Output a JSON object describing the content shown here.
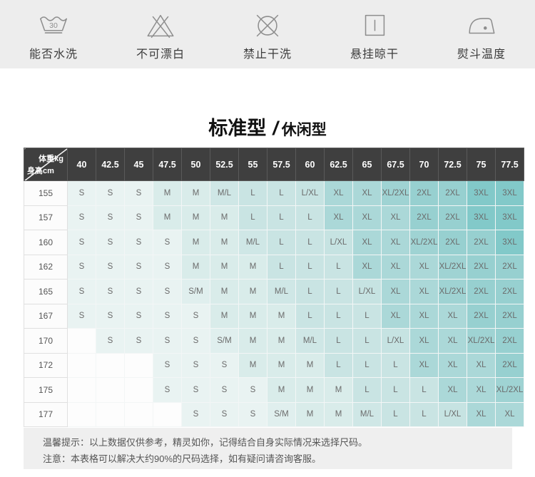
{
  "care_icons": [
    {
      "icon": "wash-30-icon",
      "label": "能否水洗"
    },
    {
      "icon": "no-bleach-icon",
      "label": "不可漂白"
    },
    {
      "icon": "no-dry-clean-icon",
      "label": "禁止干洗"
    },
    {
      "icon": "hang-dry-icon",
      "label": "悬挂晾干"
    },
    {
      "icon": "iron-temp-icon",
      "label": "熨斗温度"
    }
  ],
  "wash_icon_temp": "30",
  "title": {
    "primary": "标准型",
    "separator": "/",
    "secondary": "休闲型"
  },
  "size_chart": {
    "corner": {
      "top_right": "体重kg",
      "bottom_left": "身高cm"
    },
    "weight_columns": [
      "40",
      "42.5",
      "45",
      "47.5",
      "50",
      "52.5",
      "55",
      "57.5",
      "60",
      "62.5",
      "65",
      "67.5",
      "70",
      "72.5",
      "75",
      "77.5"
    ],
    "rows": [
      {
        "height": "155",
        "sizes": [
          "S",
          "S",
          "S",
          "M",
          "M",
          "M/L",
          "L",
          "L",
          "L/XL",
          "XL",
          "XL",
          "XL/2XL",
          "2XL",
          "2XL",
          "3XL",
          "3XL"
        ]
      },
      {
        "height": "157",
        "sizes": [
          "S",
          "S",
          "S",
          "M",
          "M",
          "M",
          "L",
          "L",
          "L",
          "XL",
          "XL",
          "XL",
          "2XL",
          "2XL",
          "3XL",
          "3XL"
        ]
      },
      {
        "height": "160",
        "sizes": [
          "S",
          "S",
          "S",
          "S",
          "M",
          "M",
          "M/L",
          "L",
          "L",
          "L/XL",
          "XL",
          "XL",
          "XL/2XL",
          "2XL",
          "2XL",
          "3XL"
        ]
      },
      {
        "height": "162",
        "sizes": [
          "S",
          "S",
          "S",
          "S",
          "M",
          "M",
          "M",
          "L",
          "L",
          "L",
          "XL",
          "XL",
          "XL",
          "XL/2XL",
          "2XL",
          "2XL"
        ]
      },
      {
        "height": "165",
        "sizes": [
          "S",
          "S",
          "S",
          "S",
          "S/M",
          "M",
          "M",
          "M/L",
          "L",
          "L",
          "L/XL",
          "XL",
          "XL",
          "XL/2XL",
          "2XL",
          "2XL"
        ]
      },
      {
        "height": "167",
        "sizes": [
          "S",
          "S",
          "S",
          "S",
          "S",
          "M",
          "M",
          "M",
          "L",
          "L",
          "L",
          "XL",
          "XL",
          "XL",
          "2XL",
          "2XL"
        ]
      },
      {
        "height": "170",
        "sizes": [
          "",
          "S",
          "S",
          "S",
          "S",
          "S/M",
          "M",
          "M",
          "M/L",
          "L",
          "L",
          "L/XL",
          "XL",
          "XL",
          "XL/2XL",
          "2XL"
        ]
      },
      {
        "height": "172",
        "sizes": [
          "",
          "",
          "",
          "S",
          "S",
          "S",
          "M",
          "M",
          "M",
          "L",
          "L",
          "L",
          "XL",
          "XL",
          "XL",
          "2XL"
        ]
      },
      {
        "height": "175",
        "sizes": [
          "",
          "",
          "",
          "S",
          "S",
          "S",
          "S",
          "M",
          "M",
          "M",
          "L",
          "L",
          "L",
          "XL",
          "XL",
          "XL/2XL"
        ]
      },
      {
        "height": "177",
        "sizes": [
          "",
          "",
          "",
          "",
          "S",
          "S",
          "S",
          "S/M",
          "M",
          "M",
          "M/L",
          "L",
          "L",
          "L/XL",
          "XL",
          "XL"
        ]
      }
    ],
    "size_colors": {
      "": "#fdfdfd",
      "S": "#e9f3f2",
      "S/M": "#e0efee",
      "M": "#d9ecea",
      "M/L": "#cfe7e6",
      "L": "#c9e4e3",
      "L/XL": "#c6e3e2",
      "XL": "#abd8d8",
      "XL/2XL": "#9fd3d3",
      "2XL": "#97d0d0",
      "3XL": "#82c9c9"
    },
    "header_bg": "#3f3f3f"
  },
  "notes": [
    "温馨提示：以上数据仅供参考，精灵如你，记得结合自身实际情况来选择尺码。",
    "注意：本表格可以解决大约90%的尺码选择，如有疑问请咨询客服。"
  ]
}
